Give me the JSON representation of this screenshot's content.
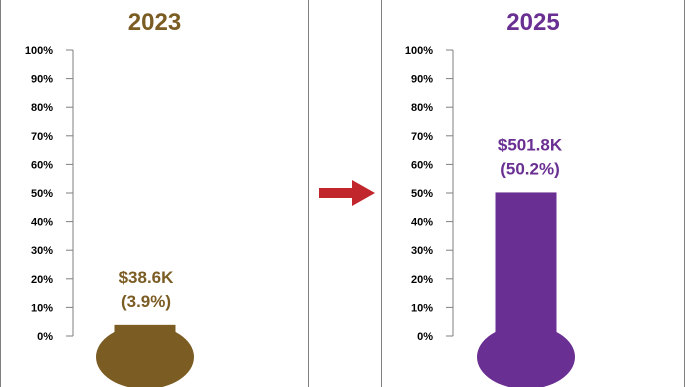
{
  "chart_data": [
    {
      "type": "bar",
      "variant": "thermometer",
      "title": "2023",
      "color": "#7b5c23",
      "y_ticks": [
        "0%",
        "10%",
        "20%",
        "30%",
        "40%",
        "50%",
        "60%",
        "70%",
        "80%",
        "90%",
        "100%"
      ],
      "ylim": [
        0,
        100
      ],
      "value": 3.9,
      "label_amount": "$38.6K",
      "label_percent": "(3.9%)"
    },
    {
      "type": "bar",
      "variant": "thermometer",
      "title": "2025",
      "color": "#6a2f92",
      "y_ticks": [
        "0%",
        "10%",
        "20%",
        "30%",
        "40%",
        "50%",
        "60%",
        "70%",
        "80%",
        "90%",
        "100%"
      ],
      "ylim": [
        0,
        100
      ],
      "value": 50.2,
      "label_amount": "$501.8K",
      "label_percent": "(50.2%)"
    }
  ],
  "arrow": {
    "color": "#c0262b",
    "icon": "right-arrow-icon"
  }
}
